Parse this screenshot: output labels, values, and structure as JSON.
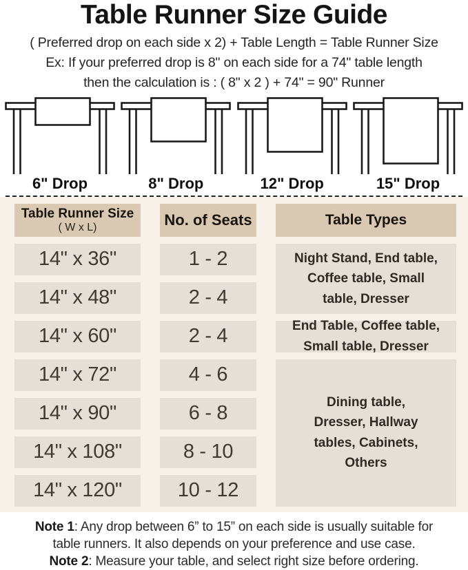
{
  "title": "Table Runner Size Guide",
  "formula": "( Preferred drop on each side x 2) + Table Length = Table Runner Size",
  "example_line1": "Ex: If your preferred drop is 8\" on each side for a 74\" table length",
  "example_line2": "then the calculation is : ( 8\" x 2 ) + 74\" = 90\" Runner",
  "illustrations": [
    {
      "label": "6\" Drop",
      "runner_height": 39
    },
    {
      "label": "8\" Drop",
      "runner_height": 63
    },
    {
      "label": "12\" Drop",
      "runner_height": 78
    },
    {
      "label": "15\" Drop",
      "runner_height": 95
    }
  ],
  "table": {
    "headers": {
      "size_title": "Table Runner Size",
      "size_sub": "( W x L)",
      "seats": "No. of Seats",
      "types": "Table Types"
    },
    "rows": [
      {
        "size": "14\" x 36\"",
        "seats": "1 - 2"
      },
      {
        "size": "14\" x 48\"",
        "seats": "2 - 4"
      },
      {
        "size": "14\" x 60\"",
        "seats": "2 - 4"
      },
      {
        "size": "14\" x 72\"",
        "seats": "4 - 6"
      },
      {
        "size": "14\" x 90\"",
        "seats": "6 - 8"
      },
      {
        "size": "14\" x 108\"",
        "seats": "8 - 10"
      },
      {
        "size": "14\" x 120\"",
        "seats": "10 - 12"
      }
    ],
    "type_groups": [
      {
        "text": "Night Stand, End table,\nCoffee table, Small\ntable, Dresser",
        "rows_spanned": "1-2"
      },
      {
        "text": "End Table, Coffee table,\nSmall table, Dresser",
        "rows_spanned": "3"
      },
      {
        "text": "Dining table,\nDresser, Hallway\ntables, Cabinets,\nOthers",
        "rows_spanned": "4-7"
      }
    ]
  },
  "notes": {
    "note1_label": "Note 1",
    "note1_line1": ": Any drop between 6” to 15” on each side is usually suitable for",
    "note1_line2": "table runners. It also depends on your preference and use case.",
    "note2_label": "Note 2",
    "note2_text": ": Measure your table, and select right size before ordering."
  },
  "colors": {
    "page_background": "#ffffff",
    "table_section_background": "#f7f1e9",
    "header_cell_background": "#d9c9b2",
    "data_cell_background": "#e6dfd8",
    "text_dark": "#141414",
    "line_art": "#1a1a1a"
  }
}
